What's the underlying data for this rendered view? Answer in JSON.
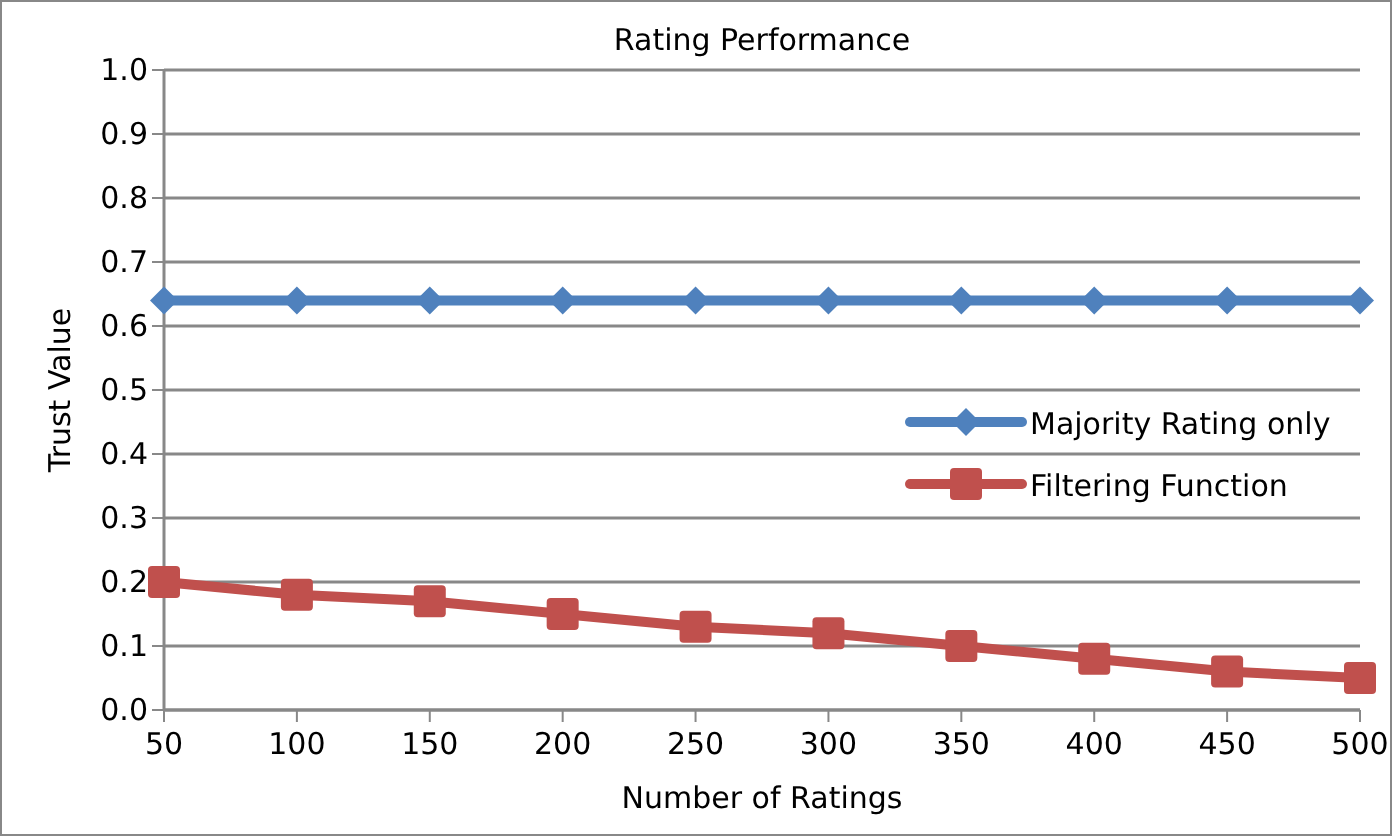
{
  "chart_data": {
    "type": "line",
    "title": "Rating Performance",
    "xlabel": "Number of Ratings",
    "ylabel": "Trust Value",
    "x": [
      50,
      100,
      150,
      200,
      250,
      300,
      350,
      400,
      450,
      500
    ],
    "xlim": [
      50,
      500
    ],
    "xticks": [
      50,
      100,
      150,
      200,
      250,
      300,
      350,
      400,
      450,
      500
    ],
    "ylim": [
      0,
      1
    ],
    "yticks": [
      {
        "value": 0,
        "label": "0.0"
      },
      {
        "value": 0.1,
        "label": "0.1"
      },
      {
        "value": 0.2,
        "label": "0.2"
      },
      {
        "value": 0.3,
        "label": "0.3"
      },
      {
        "value": 0.4,
        "label": "0.4"
      },
      {
        "value": 0.5,
        "label": "0.5"
      },
      {
        "value": 0.6,
        "label": "0.6"
      },
      {
        "value": 0.7,
        "label": "0.7"
      },
      {
        "value": 0.8,
        "label": "0.8"
      },
      {
        "value": 0.9,
        "label": "0.9"
      },
      {
        "value": 1,
        "label": "1.0"
      }
    ],
    "grid": "y",
    "legend": "right",
    "series": [
      {
        "name": "Majority Rating only",
        "color": "#4f81bd",
        "marker": "diamond",
        "values": [
          0.64,
          0.64,
          0.64,
          0.64,
          0.64,
          0.64,
          0.64,
          0.64,
          0.64,
          0.64
        ]
      },
      {
        "name": "Filtering Function",
        "color": "#c0504d",
        "marker": "square",
        "values": [
          0.2,
          0.18,
          0.17,
          0.15,
          0.13,
          0.12,
          0.1,
          0.08,
          0.06,
          0.05
        ]
      }
    ]
  }
}
